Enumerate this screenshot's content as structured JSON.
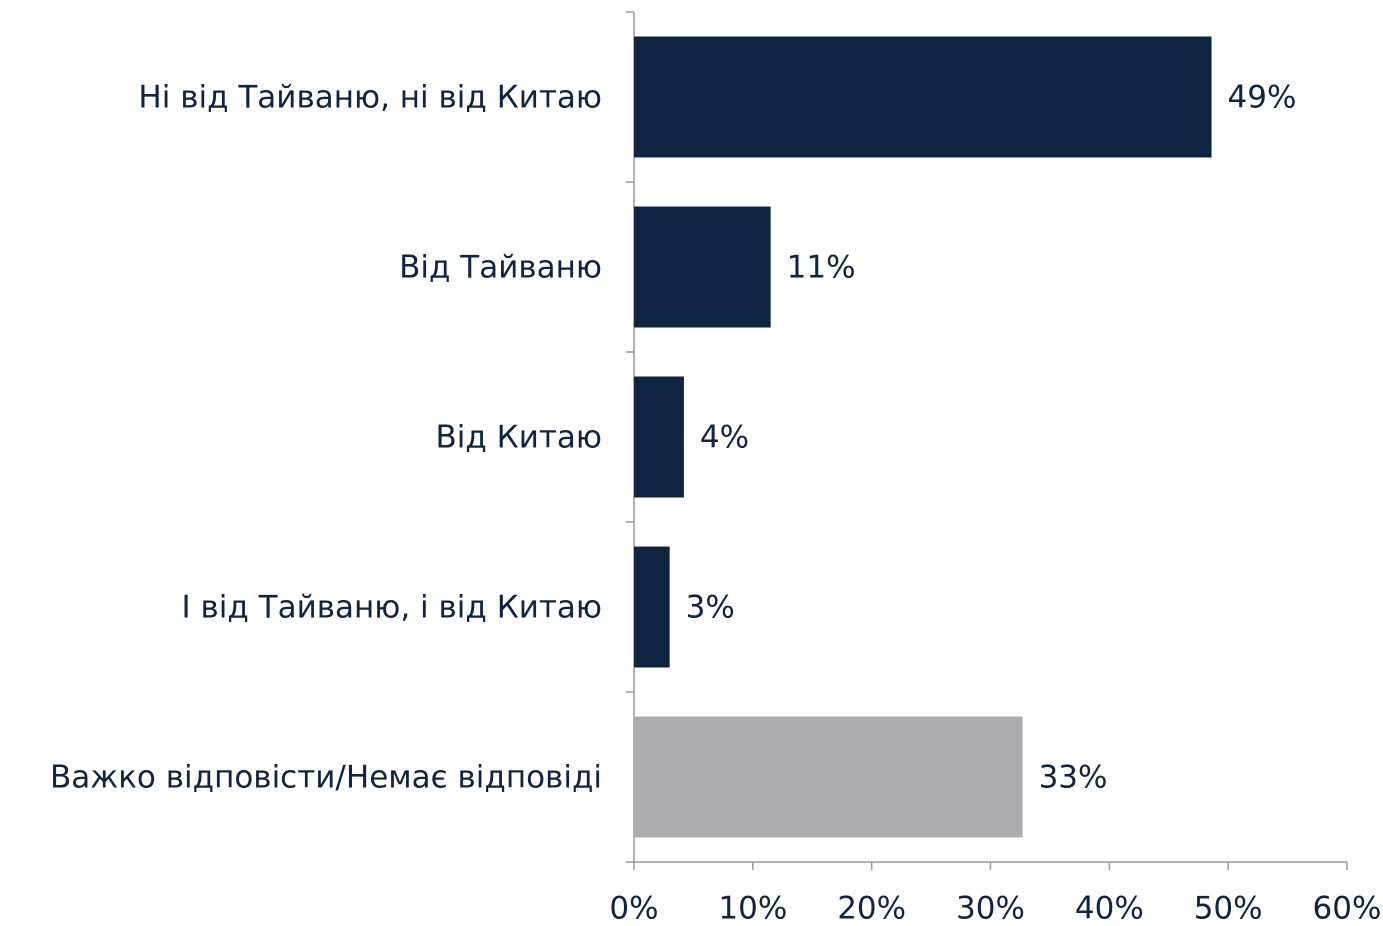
{
  "chart_data": {
    "type": "barh",
    "categories": [
      "Ні від Тайваню, ні від Китаю",
      "Від Тайваню",
      "Від Китаю",
      "І від Тайваню, і від Китаю",
      "Важко відповісти/Немає відповіді"
    ],
    "values": [
      48.6,
      11.5,
      4.2,
      3.0,
      32.7
    ],
    "value_labels": [
      "49%",
      "11%",
      "4%",
      "3%",
      "33%"
    ],
    "colors": [
      "#0f2441",
      "#0f2441",
      "#0f2441",
      "#0f2441",
      "#acacae"
    ],
    "xlim": [
      0,
      60
    ],
    "xticks": [
      {
        "value": 0,
        "label": "0%"
      },
      {
        "value": 10,
        "label": "10%"
      },
      {
        "value": 20,
        "label": "20%"
      },
      {
        "value": 30,
        "label": "30%"
      },
      {
        "value": 40,
        "label": "40%"
      },
      {
        "value": 50,
        "label": "50%"
      },
      {
        "value": 60,
        "label": "60%"
      }
    ],
    "grid": false
  }
}
